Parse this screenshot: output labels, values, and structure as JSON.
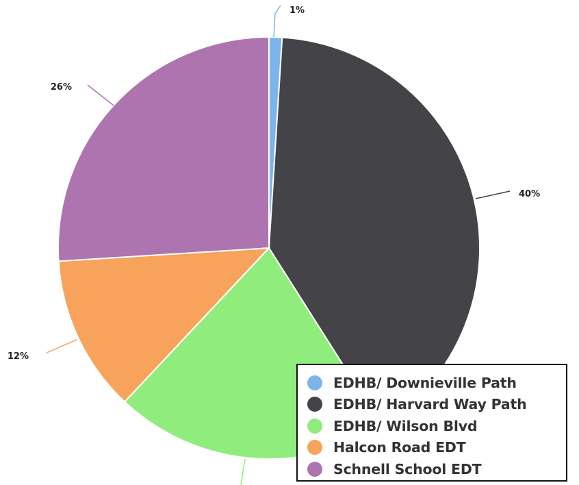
{
  "chart_data": {
    "type": "pie",
    "start_angle_deg": 0,
    "direction": "clockwise",
    "slices": [
      {
        "label": "EDHB/ Downieville Path",
        "value": 1,
        "color": "#7cb5ec",
        "value_label": "1%"
      },
      {
        "label": "EDHB/ Harvard Way Path",
        "value": 40,
        "color": "#434348",
        "value_label": "40%"
      },
      {
        "label": "EDHB/ Wilson Blvd",
        "value": 21,
        "color": "#90ed7d",
        "value_label": ""
      },
      {
        "label": "Halcon Road EDT",
        "value": 12,
        "color": "#f7a35c",
        "value_label": "12%"
      },
      {
        "label": "Schnell School EDT",
        "value": 26,
        "color": "#ad74b0",
        "value_label": "26%"
      }
    ],
    "legend_position": "bottom-right"
  }
}
